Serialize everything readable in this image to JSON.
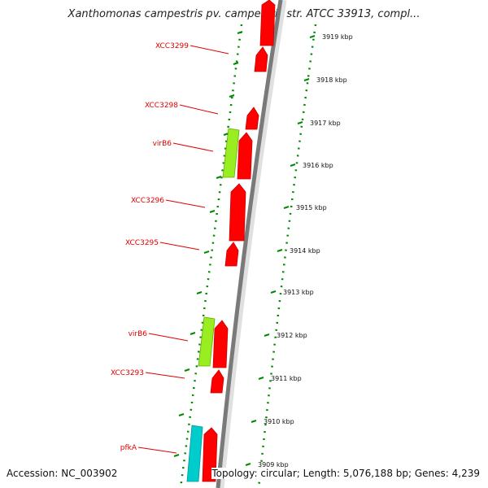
{
  "title": "Xanthomonas campestris pv. campestris str. ATCC 33913, compl...",
  "accession": "Accession: NC_003902",
  "topology": "Topology: circular; Length: 5,076,188 bp; Genes: 4,239",
  "colors": {
    "forward_gene": "#ff0000",
    "reverse_green": "#99ee22",
    "reverse_cyan": "#00cccc",
    "backbone": "#888888",
    "dotted_line": "#008800",
    "label": "#e00000"
  },
  "gene_labels": [
    "XCC3299",
    "XCC3298",
    "virB6",
    "XCC3296",
    "XCC3295",
    "virB6",
    "XCC3293",
    "pfkA"
  ],
  "kbp_labels": [
    "3919 kbp",
    "3918 kbp",
    "3917 kbp",
    "3916 kbp",
    "3915 kbp",
    "3914 kbp",
    "3913 kbp",
    "3912 kbp",
    "3911 kbp",
    "3910 kbp",
    "3909 kbp"
  ]
}
